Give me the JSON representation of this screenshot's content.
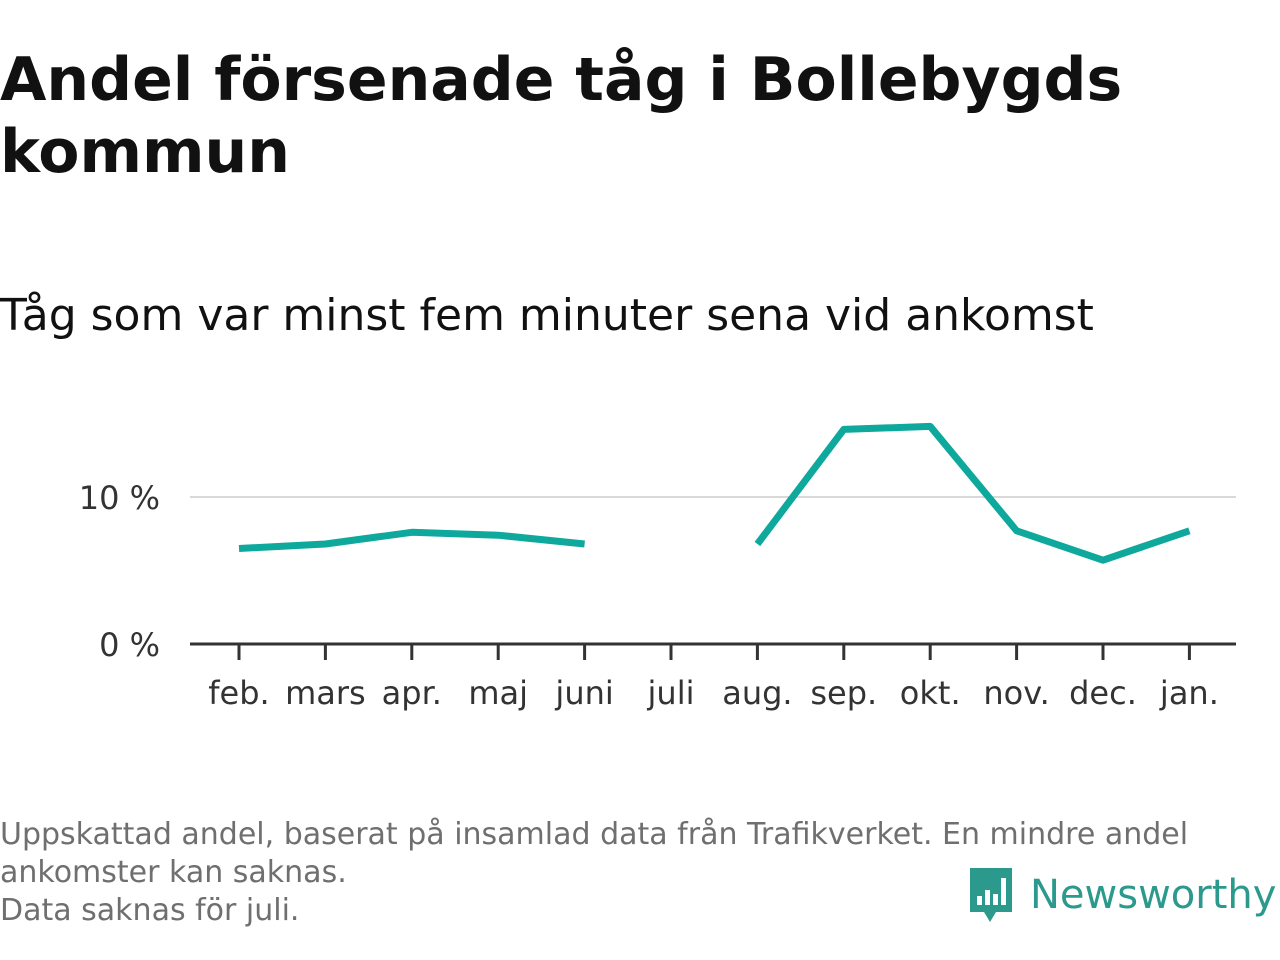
{
  "chart_data": {
    "type": "line",
    "title": "Andel försenade tåg i Bollebygds kommun",
    "subtitle": "Tåg som var minst fem minuter sena vid ankomst",
    "categories": [
      "feb.",
      "mars",
      "apr.",
      "maj",
      "juni",
      "juli",
      "aug.",
      "sep.",
      "okt.",
      "nov.",
      "dec.",
      "jan."
    ],
    "series": [
      {
        "values": [
          6.5,
          6.8,
          7.6,
          7.4,
          6.8,
          null,
          6.8,
          14.6,
          14.8,
          7.7,
          5.7,
          7.7
        ]
      }
    ],
    "yticks": [
      0,
      10
    ],
    "ytick_labels": [
      "0 %",
      "10 %"
    ],
    "ylim": [
      0,
      16
    ],
    "xlabel": "",
    "ylabel": "",
    "grid": "horizontal",
    "line_color": "#0fa89c",
    "gridline_color": "#d9d9d9",
    "axis_color": "#333333"
  },
  "footer": {
    "notes": [
      "Uppskattad andel, baserat på insamlad data från Trafikverket. En mindre andel",
      "ankomster kan saknas.",
      "Data saknas för juli."
    ],
    "brand": "Newsworthy",
    "brand_color": "#2b9a8d",
    "brand_icon": "newsworthy-logo-icon"
  }
}
